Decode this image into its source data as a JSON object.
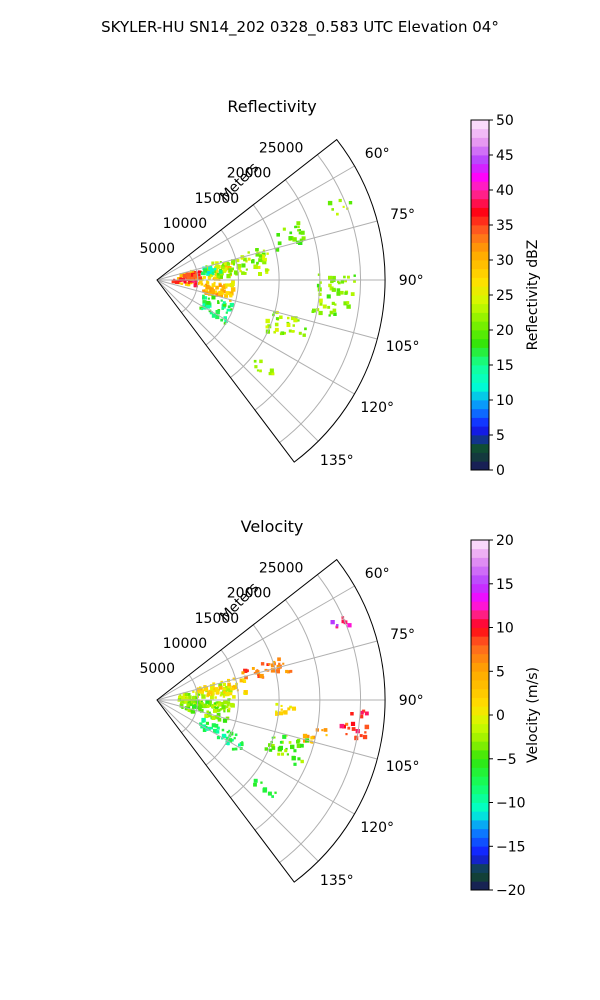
{
  "figure_title": "SKYLER-HU  SN14_202  0328_0.583 UTC Elevation 04°",
  "chart_data": [
    {
      "type": "polar-sector",
      "title": "Reflectivity",
      "radial_label": "Meters",
      "theta_range_deg": [
        52,
        143
      ],
      "radial_ticks": [
        "5000",
        "10000",
        "15000",
        "20000",
        "25000"
      ],
      "radial_tick_values": [
        5000,
        10000,
        15000,
        20000,
        25000
      ],
      "angular_ticks": [
        "60°",
        "75°",
        "90°",
        "105°",
        "120°",
        "135°"
      ],
      "angular_tick_values": [
        60,
        75,
        90,
        105,
        120,
        135
      ],
      "rmax": 28000,
      "colorbar": {
        "label": "Reflectivity dBZ",
        "ticks": [
          "0",
          "5",
          "10",
          "15",
          "20",
          "25",
          "30",
          "35",
          "40",
          "45",
          "50"
        ],
        "range": [
          0,
          50
        ],
        "stops": [
          {
            "v": 0,
            "c": "#1a1460"
          },
          {
            "v": 3,
            "c": "#0f4f2a"
          },
          {
            "v": 6,
            "c": "#1414ff"
          },
          {
            "v": 9,
            "c": "#0a8cff"
          },
          {
            "v": 12,
            "c": "#00ffd2"
          },
          {
            "v": 15,
            "c": "#14ff96"
          },
          {
            "v": 18,
            "c": "#32e60a"
          },
          {
            "v": 21,
            "c": "#7ef000"
          },
          {
            "v": 24,
            "c": "#d2fa00"
          },
          {
            "v": 27,
            "c": "#ffe000"
          },
          {
            "v": 31,
            "c": "#ffa800"
          },
          {
            "v": 34,
            "c": "#ff6420"
          },
          {
            "v": 37,
            "c": "#ff0014"
          },
          {
            "v": 40,
            "c": "#ff28a8"
          },
          {
            "v": 42,
            "c": "#ff00ff"
          },
          {
            "v": 44,
            "c": "#b43cff"
          },
          {
            "v": 47,
            "c": "#e89cf0"
          },
          {
            "v": 50,
            "c": "#ffecff"
          }
        ]
      },
      "echo_regions": [
        {
          "theta": 88,
          "r": 6000,
          "dt": 22,
          "dr": 7000,
          "value": 28
        },
        {
          "theta": 93,
          "r": 3500,
          "dt": 10,
          "dr": 3000,
          "value": 38
        },
        {
          "theta": 100,
          "r": 7500,
          "dt": 12,
          "dr": 4000,
          "value": 30
        },
        {
          "theta": 84,
          "r": 4000,
          "dt": 10,
          "dr": 3000,
          "value": 35
        },
        {
          "theta": 80,
          "r": 10000,
          "dt": 14,
          "dr": 8000,
          "value": 22
        },
        {
          "theta": 72,
          "r": 17000,
          "dt": 8,
          "dr": 4000,
          "value": 20
        },
        {
          "theta": 68,
          "r": 24500,
          "dt": 4,
          "dr": 2500,
          "value": 22
        },
        {
          "theta": 95,
          "r": 22000,
          "dt": 14,
          "dr": 5000,
          "value": 21
        },
        {
          "theta": 110,
          "r": 17000,
          "dt": 10,
          "dr": 5000,
          "value": 22
        },
        {
          "theta": 130,
          "r": 17000,
          "dt": 4,
          "dr": 3000,
          "value": 23
        },
        {
          "theta": 115,
          "r": 8000,
          "dt": 16,
          "dr": 4000,
          "value": 16
        },
        {
          "theta": 80,
          "r": 6500,
          "dt": 8,
          "dr": 3000,
          "value": 14
        }
      ]
    },
    {
      "type": "polar-sector",
      "title": "Velocity",
      "radial_label": "Meters",
      "theta_range_deg": [
        52,
        143
      ],
      "radial_ticks": [
        "5000",
        "10000",
        "15000",
        "20000",
        "25000"
      ],
      "radial_tick_values": [
        5000,
        10000,
        15000,
        20000,
        25000
      ],
      "angular_ticks": [
        "60°",
        "75°",
        "90°",
        "105°",
        "120°",
        "135°"
      ],
      "angular_tick_values": [
        60,
        75,
        90,
        105,
        120,
        135
      ],
      "rmax": 28000,
      "colorbar": {
        "label": "Velocity (m/s)",
        "ticks": [
          "−20",
          "−15",
          "−10",
          "−5",
          "0",
          "5",
          "10",
          "15",
          "20"
        ],
        "range": [
          -20,
          20
        ],
        "stops": [
          {
            "v": -20,
            "c": "#1a1460"
          },
          {
            "v": -18,
            "c": "#0f4f2a"
          },
          {
            "v": -16,
            "c": "#1414ff"
          },
          {
            "v": -13,
            "c": "#0a8cff"
          },
          {
            "v": -11,
            "c": "#00ffd2"
          },
          {
            "v": -8,
            "c": "#14ff64"
          },
          {
            "v": -5,
            "c": "#32e60a"
          },
          {
            "v": -3,
            "c": "#96f000"
          },
          {
            "v": -1,
            "c": "#d2fa00"
          },
          {
            "v": 1,
            "c": "#ffe000"
          },
          {
            "v": 5,
            "c": "#ffa800"
          },
          {
            "v": 8,
            "c": "#ff6420"
          },
          {
            "v": 10,
            "c": "#ff0014"
          },
          {
            "v": 12,
            "c": "#ff28a8"
          },
          {
            "v": 13,
            "c": "#ff00ff"
          },
          {
            "v": 15,
            "c": "#b43cff"
          },
          {
            "v": 18,
            "c": "#e89cf0"
          },
          {
            "v": 20,
            "c": "#ffecff"
          }
        ]
      },
      "echo_regions": [
        {
          "theta": 88,
          "r": 6000,
          "dt": 22,
          "dr": 7000,
          "value": -2
        },
        {
          "theta": 80,
          "r": 8000,
          "dt": 12,
          "dr": 6000,
          "value": 2
        },
        {
          "theta": 75,
          "r": 14000,
          "dt": 8,
          "dr": 6000,
          "value": 7
        },
        {
          "theta": 100,
          "r": 6000,
          "dt": 16,
          "dr": 6000,
          "value": -4
        },
        {
          "theta": 118,
          "r": 9000,
          "dt": 10,
          "dr": 6000,
          "value": -8
        },
        {
          "theta": 68,
          "r": 24500,
          "dt": 4,
          "dr": 2500,
          "value": 13
        },
        {
          "theta": 97,
          "r": 24500,
          "dt": 8,
          "dr": 3500,
          "value": 9
        },
        {
          "theta": 103,
          "r": 20000,
          "dt": 6,
          "dr": 3000,
          "value": 4
        },
        {
          "theta": 110,
          "r": 17000,
          "dt": 10,
          "dr": 5000,
          "value": -4
        },
        {
          "theta": 130,
          "r": 17000,
          "dt": 4,
          "dr": 3000,
          "value": -7
        },
        {
          "theta": 95,
          "r": 16000,
          "dt": 6,
          "dr": 3000,
          "value": 1
        }
      ]
    }
  ]
}
